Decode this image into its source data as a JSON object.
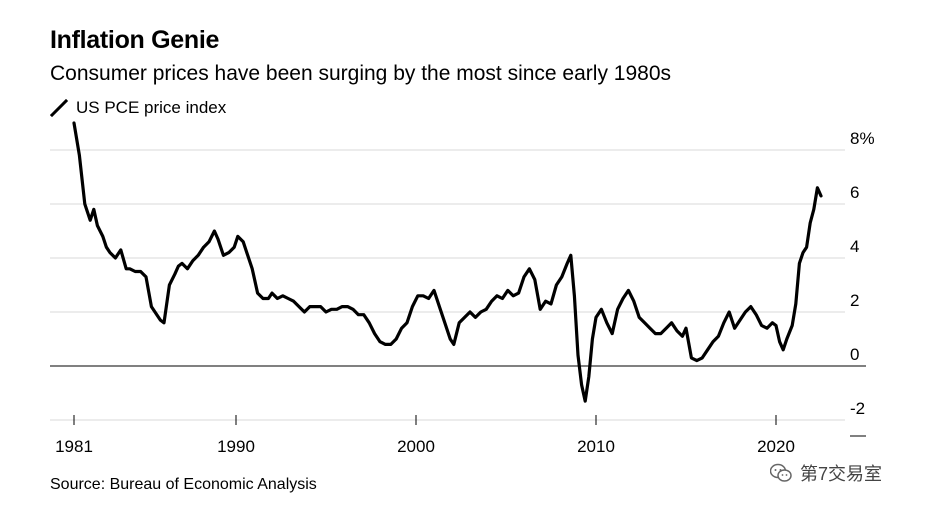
{
  "header": {
    "title": "Inflation Genie",
    "subtitle": "Consumer prices have been surging by the most since early 1980s"
  },
  "footer": {
    "source": "Source: Bureau of Economic Analysis",
    "watermark": "第7交易室"
  },
  "chart_data": {
    "type": "line",
    "title": "Inflation Genie",
    "subtitle": "Consumer prices have been surging by the most since early 1980s",
    "xlabel": "",
    "ylabel": "",
    "xlim": [
      1981,
      2023.5
    ],
    "ylim": [
      -2,
      8
    ],
    "x_ticks": [
      1981,
      1990,
      2000,
      2010,
      2020
    ],
    "x_tick_labels": [
      "1981",
      "1990",
      "2000",
      "2010",
      "2020"
    ],
    "y_ticks": [
      -2,
      0,
      2,
      4,
      6,
      8
    ],
    "y_tick_labels": [
      "-2",
      "0",
      "2",
      "4",
      "6",
      "8%"
    ],
    "grid": true,
    "zero_line": true,
    "legend": "top-left",
    "series": [
      {
        "name": "US PCE price index",
        "color": "#000000",
        "x": [
          1981.0,
          1981.3,
          1981.6,
          1981.9,
          1982.1,
          1982.3,
          1982.6,
          1982.8,
          1983.0,
          1983.3,
          1983.6,
          1983.9,
          1984.1,
          1984.4,
          1984.7,
          1985.0,
          1985.3,
          1985.6,
          1985.8,
          1986.0,
          1986.3,
          1986.6,
          1986.8,
          1987.0,
          1987.3,
          1987.6,
          1987.9,
          1988.2,
          1988.5,
          1988.8,
          1989.0,
          1989.3,
          1989.6,
          1989.9,
          1990.1,
          1990.4,
          1990.6,
          1990.9,
          1991.2,
          1991.5,
          1991.8,
          1992.0,
          1992.3,
          1992.6,
          1992.9,
          1993.2,
          1993.5,
          1993.8,
          1994.1,
          1994.4,
          1994.7,
          1995.0,
          1995.3,
          1995.6,
          1995.9,
          1996.2,
          1996.5,
          1996.8,
          1997.1,
          1997.4,
          1997.7,
          1998.0,
          1998.3,
          1998.6,
          1998.9,
          1999.2,
          1999.5,
          1999.8,
          2000.1,
          2000.4,
          2000.7,
          2001.0,
          2001.3,
          2001.6,
          2001.9,
          2002.1,
          2002.4,
          2002.7,
          2003.0,
          2003.3,
          2003.6,
          2003.9,
          2004.2,
          2004.5,
          2004.8,
          2005.1,
          2005.4,
          2005.7,
          2006.0,
          2006.3,
          2006.6,
          2006.9,
          2007.2,
          2007.5,
          2007.8,
          2008.1,
          2008.4,
          2008.6,
          2008.8,
          2009.0,
          2009.2,
          2009.4,
          2009.6,
          2009.8,
          2010.0,
          2010.3,
          2010.6,
          2010.9,
          2011.2,
          2011.5,
          2011.8,
          2012.1,
          2012.4,
          2012.7,
          2013.0,
          2013.3,
          2013.6,
          2013.9,
          2014.2,
          2014.5,
          2014.8,
          2015.0,
          2015.3,
          2015.6,
          2015.9,
          2016.2,
          2016.5,
          2016.8,
          2017.1,
          2017.4,
          2017.7,
          2018.0,
          2018.3,
          2018.6,
          2018.9,
          2019.2,
          2019.5,
          2019.8,
          2020.0,
          2020.2,
          2020.4,
          2020.6,
          2020.9,
          2021.1,
          2021.3,
          2021.5,
          2021.7,
          2021.9,
          2022.1,
          2022.3,
          2022.5
        ],
        "values": [
          9.0,
          7.8,
          6.0,
          5.4,
          5.8,
          5.2,
          4.8,
          4.4,
          4.2,
          4.0,
          4.3,
          3.6,
          3.6,
          3.5,
          3.5,
          3.3,
          2.2,
          1.9,
          1.7,
          1.6,
          3.0,
          3.4,
          3.7,
          3.8,
          3.6,
          3.9,
          4.1,
          4.4,
          4.6,
          5.0,
          4.7,
          4.1,
          4.2,
          4.4,
          4.8,
          4.6,
          4.2,
          3.6,
          2.7,
          2.5,
          2.5,
          2.7,
          2.5,
          2.6,
          2.5,
          2.4,
          2.2,
          2.0,
          2.2,
          2.2,
          2.2,
          2.0,
          2.1,
          2.1,
          2.2,
          2.2,
          2.1,
          1.9,
          1.9,
          1.6,
          1.2,
          0.9,
          0.8,
          0.8,
          1.0,
          1.4,
          1.6,
          2.2,
          2.6,
          2.6,
          2.5,
          2.8,
          2.2,
          1.6,
          1.0,
          0.8,
          1.6,
          1.8,
          2.0,
          1.8,
          2.0,
          2.1,
          2.4,
          2.6,
          2.5,
          2.8,
          2.6,
          2.7,
          3.3,
          3.6,
          3.2,
          2.1,
          2.4,
          2.3,
          3.0,
          3.3,
          3.8,
          4.1,
          2.6,
          0.4,
          -0.7,
          -1.3,
          -0.4,
          1.0,
          1.8,
          2.1,
          1.6,
          1.2,
          2.1,
          2.5,
          2.8,
          2.4,
          1.8,
          1.6,
          1.4,
          1.2,
          1.2,
          1.4,
          1.6,
          1.3,
          1.1,
          1.4,
          0.3,
          0.2,
          0.3,
          0.6,
          0.9,
          1.1,
          1.6,
          2.0,
          1.4,
          1.7,
          2.0,
          2.2,
          1.9,
          1.5,
          1.4,
          1.6,
          1.5,
          0.9,
          0.6,
          1.0,
          1.5,
          2.3,
          3.8,
          4.2,
          4.4,
          5.3,
          5.8,
          6.6,
          6.3
        ]
      }
    ]
  }
}
